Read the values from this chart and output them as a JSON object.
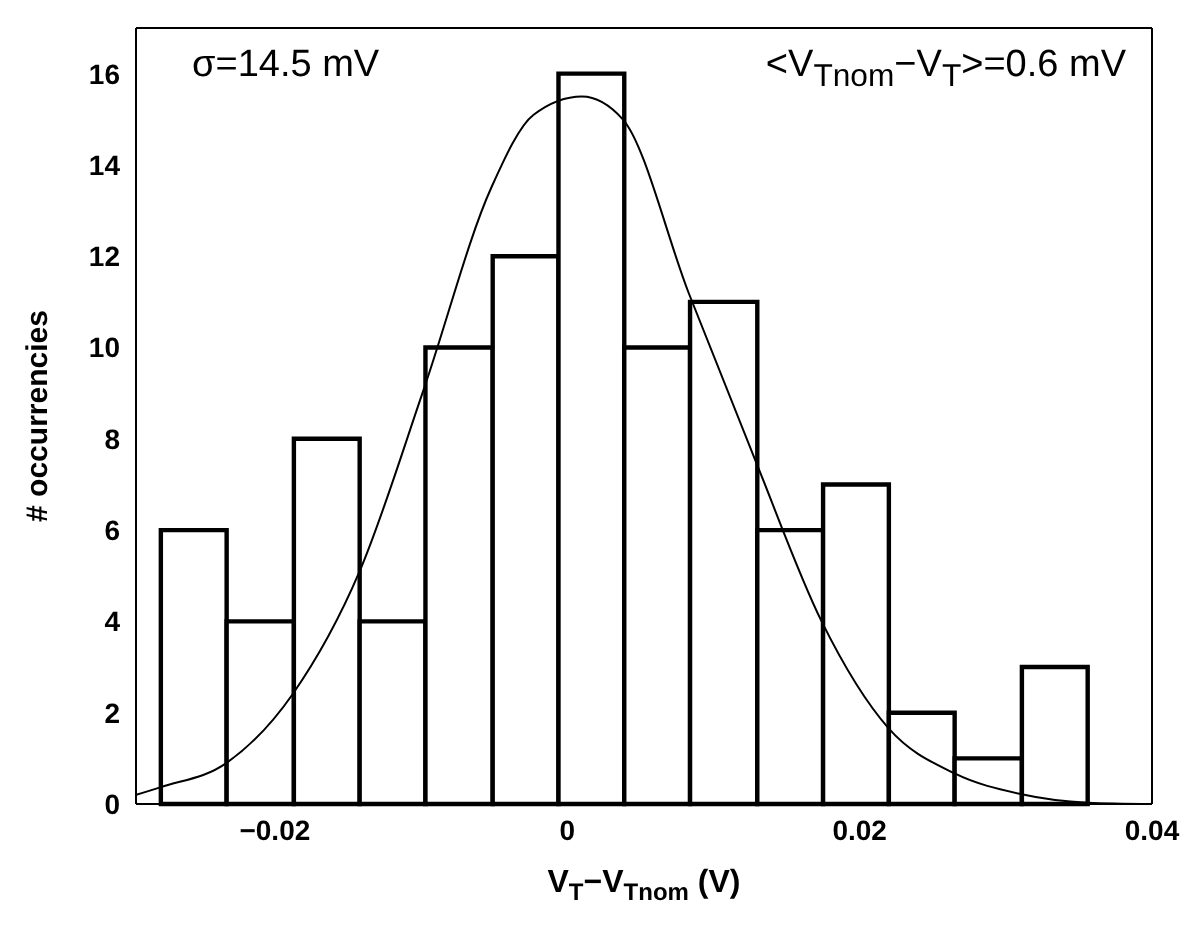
{
  "chart_data": {
    "type": "histogram",
    "bins": [
      -0.0278,
      -0.0233,
      -0.0187,
      -0.0142,
      -0.0097,
      -0.0051,
      -0.0006,
      0.0039,
      0.0084,
      0.013,
      0.0175,
      0.022,
      0.0265,
      0.0311,
      0.0356
    ],
    "values": [
      6,
      4,
      8,
      4,
      10,
      12,
      16,
      10,
      11,
      6,
      7,
      2,
      1,
      3
    ],
    "color": "#ffffff",
    "series": [
      {
        "type": "line",
        "color": "#000000",
        "x": [
          -0.0295,
          -0.0278,
          -0.0233,
          -0.0188,
          -0.0142,
          -0.0098,
          -0.0052,
          -0.0023,
          0.001,
          0.0038,
          0.0083,
          0.0129,
          0.0174,
          0.022,
          0.0265,
          0.031,
          0.0356,
          0.04
        ],
        "values": [
          0.2,
          0.37,
          0.9,
          2.4,
          5.1,
          9.1,
          13.5,
          15.1,
          15.5,
          15.0,
          11.2,
          7.5,
          4.0,
          1.65,
          0.67,
          0.22,
          0.03,
          0
        ]
      }
    ],
    "xlabel": "V$_{T}$−V$_{Tnom}$  (V)",
    "ylabel": "# occurrencies",
    "annotations": [
      "σ=14.5 mV",
      "<V$_{Tnom}$−V$_{T}$>=0.6 mV"
    ],
    "xlim": [
      -0.0295,
      0.04
    ],
    "xticks": [
      {
        "value": -0.02,
        "label": "−0.02"
      },
      0,
      0.02,
      0.04
    ],
    "ylim": [
      0,
      17
    ],
    "yticks": [
      0,
      2,
      4,
      6,
      8,
      10,
      12,
      14,
      16
    ],
    "grid": false
  }
}
